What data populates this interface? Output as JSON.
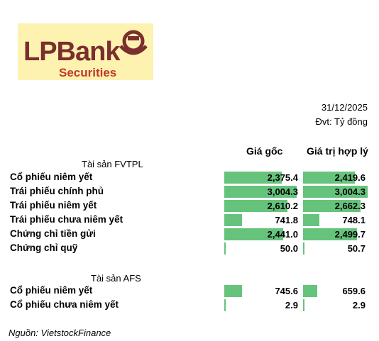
{
  "logo": {
    "brand": "LPBank",
    "sub": "Securities"
  },
  "date": "31/12/2025",
  "unit": "Đvt: Tỷ đồng",
  "chart_data": {
    "type": "table",
    "columns": [
      "Giá gốc",
      "Giá trị hợp lý"
    ],
    "xlim": [
      0,
      3004.3
    ],
    "sections": [
      {
        "title": "Tài sản FVTPL",
        "rows": [
          {
            "label": "Cổ phiếu niêm yết",
            "values": [
              2375.4,
              2419.6
            ],
            "display": [
              "2,375.4",
              "2,419.6"
            ]
          },
          {
            "label": "Trái phiếu chính phủ",
            "values": [
              3004.3,
              3004.3
            ],
            "display": [
              "3,004.3",
              "3,004.3"
            ]
          },
          {
            "label": "Trái phiếu niêm yết",
            "values": [
              2610.2,
              2662.3
            ],
            "display": [
              "2,610.2",
              "2,662.3"
            ]
          },
          {
            "label": "Trái phiếu chưa niêm yết",
            "values": [
              741.8,
              748.1
            ],
            "display": [
              "741.8",
              "748.1"
            ]
          },
          {
            "label": "Chứng chỉ tiền gửi",
            "values": [
              2441.0,
              2499.7
            ],
            "display": [
              "2,441.0",
              "2,499.7"
            ]
          },
          {
            "label": "Chứng chỉ quỹ",
            "values": [
              50.0,
              50.7
            ],
            "display": [
              "50.0",
              "50.7"
            ]
          }
        ]
      },
      {
        "title": "Tài sản AFS",
        "rows": [
          {
            "label": "Cổ phiếu niêm yết",
            "values": [
              745.6,
              659.6
            ],
            "display": [
              "745.6",
              "659.6"
            ]
          },
          {
            "label": "Cổ phiếu chưa niêm yết",
            "values": [
              2.9,
              2.9
            ],
            "display": [
              "2.9",
              "2.9"
            ]
          }
        ]
      }
    ]
  },
  "source": "Nguồn: VietstockFinance",
  "colors": {
    "bar": "#66c37c",
    "logo_bg": "#fdf2b0",
    "brand": "#7a2e2e",
    "sub": "#c0392b"
  }
}
